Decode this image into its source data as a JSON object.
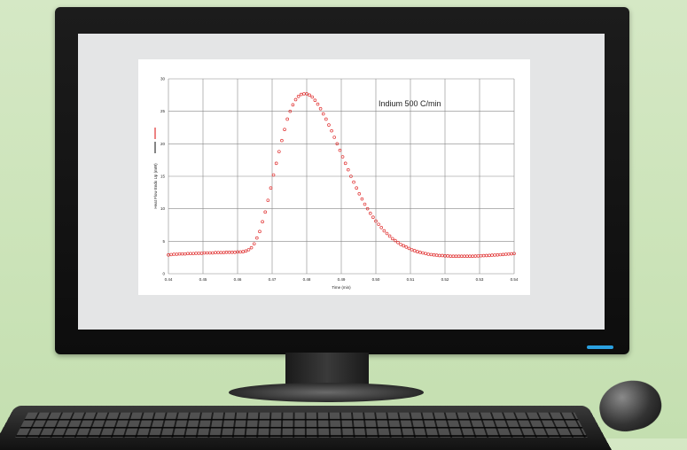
{
  "chart_data": {
    "type": "scatter",
    "annotation": "Indium 500 C/min",
    "xlabel": "Time (min)",
    "ylabel": "Heat Flow Endo Up (mW)",
    "xlim": [
      0.44,
      0.54
    ],
    "ylim": [
      0,
      30
    ],
    "xticks": [
      "0.44",
      "0.45",
      "0.46",
      "0.47",
      "0.48",
      "0.49",
      "0.50",
      "0.51",
      "0.52",
      "0.53",
      "0.54"
    ],
    "yticks": [
      "0",
      "5",
      "10",
      "15",
      "20",
      "25",
      "30"
    ],
    "grid": true,
    "marker_color": "#e03030",
    "series": [
      {
        "points": [
          [
            0.44,
            2.9
          ],
          [
            0.4408,
            2.95
          ],
          [
            0.4416,
            3.0
          ],
          [
            0.4424,
            3.0
          ],
          [
            0.4432,
            3.05
          ],
          [
            0.444,
            3.05
          ],
          [
            0.4448,
            3.05
          ],
          [
            0.4456,
            3.1
          ],
          [
            0.4464,
            3.1
          ],
          [
            0.4472,
            3.1
          ],
          [
            0.448,
            3.15
          ],
          [
            0.4488,
            3.15
          ],
          [
            0.4496,
            3.15
          ],
          [
            0.4504,
            3.2
          ],
          [
            0.4512,
            3.2
          ],
          [
            0.452,
            3.2
          ],
          [
            0.4528,
            3.2
          ],
          [
            0.4536,
            3.25
          ],
          [
            0.4544,
            3.25
          ],
          [
            0.4552,
            3.25
          ],
          [
            0.456,
            3.25
          ],
          [
            0.4568,
            3.3
          ],
          [
            0.4576,
            3.3
          ],
          [
            0.4584,
            3.3
          ],
          [
            0.4592,
            3.3
          ],
          [
            0.46,
            3.35
          ],
          [
            0.4608,
            3.35
          ],
          [
            0.4616,
            3.4
          ],
          [
            0.4624,
            3.5
          ],
          [
            0.4632,
            3.7
          ],
          [
            0.464,
            4.0
          ],
          [
            0.4648,
            4.6
          ],
          [
            0.4656,
            5.5
          ],
          [
            0.4664,
            6.5
          ],
          [
            0.4672,
            8.0
          ],
          [
            0.468,
            9.5
          ],
          [
            0.4688,
            11.3
          ],
          [
            0.4696,
            13.2
          ],
          [
            0.4704,
            15.2
          ],
          [
            0.4712,
            17.0
          ],
          [
            0.472,
            18.8
          ],
          [
            0.4728,
            20.5
          ],
          [
            0.4736,
            22.2
          ],
          [
            0.4744,
            23.8
          ],
          [
            0.4752,
            25.0
          ],
          [
            0.476,
            26.0
          ],
          [
            0.4768,
            26.8
          ],
          [
            0.4776,
            27.3
          ],
          [
            0.4784,
            27.6
          ],
          [
            0.4792,
            27.7
          ],
          [
            0.48,
            27.7
          ],
          [
            0.4808,
            27.5
          ],
          [
            0.4816,
            27.2
          ],
          [
            0.4824,
            26.7
          ],
          [
            0.4832,
            26.1
          ],
          [
            0.484,
            25.4
          ],
          [
            0.4848,
            24.6
          ],
          [
            0.4856,
            23.8
          ],
          [
            0.4864,
            22.9
          ],
          [
            0.4872,
            22.0
          ],
          [
            0.488,
            21.0
          ],
          [
            0.4888,
            20.0
          ],
          [
            0.4896,
            19.0
          ],
          [
            0.4904,
            18.0
          ],
          [
            0.4912,
            17.0
          ],
          [
            0.492,
            16.0
          ],
          [
            0.4928,
            15.0
          ],
          [
            0.4936,
            14.1
          ],
          [
            0.4944,
            13.2
          ],
          [
            0.4952,
            12.3
          ],
          [
            0.496,
            11.5
          ],
          [
            0.4968,
            10.7
          ],
          [
            0.4976,
            10.0
          ],
          [
            0.4984,
            9.3
          ],
          [
            0.4992,
            8.7
          ],
          [
            0.5,
            8.1
          ],
          [
            0.5008,
            7.6
          ],
          [
            0.5016,
            7.1
          ],
          [
            0.5024,
            6.6
          ],
          [
            0.5032,
            6.2
          ],
          [
            0.504,
            5.8
          ],
          [
            0.5048,
            5.4
          ],
          [
            0.5056,
            5.1
          ],
          [
            0.5064,
            4.8
          ],
          [
            0.5072,
            4.5
          ],
          [
            0.508,
            4.3
          ],
          [
            0.5088,
            4.1
          ],
          [
            0.5096,
            3.9
          ],
          [
            0.5104,
            3.7
          ],
          [
            0.5112,
            3.55
          ],
          [
            0.512,
            3.4
          ],
          [
            0.5128,
            3.3
          ],
          [
            0.5136,
            3.2
          ],
          [
            0.5144,
            3.1
          ],
          [
            0.5152,
            3.0
          ],
          [
            0.516,
            2.95
          ],
          [
            0.5168,
            2.9
          ],
          [
            0.5176,
            2.85
          ],
          [
            0.5184,
            2.8
          ],
          [
            0.5192,
            2.8
          ],
          [
            0.52,
            2.75
          ],
          [
            0.5208,
            2.75
          ],
          [
            0.5216,
            2.7
          ],
          [
            0.5224,
            2.7
          ],
          [
            0.5232,
            2.7
          ],
          [
            0.524,
            2.7
          ],
          [
            0.5248,
            2.7
          ],
          [
            0.5256,
            2.7
          ],
          [
            0.5264,
            2.7
          ],
          [
            0.5272,
            2.7
          ],
          [
            0.528,
            2.7
          ],
          [
            0.5288,
            2.72
          ],
          [
            0.5296,
            2.74
          ],
          [
            0.5304,
            2.76
          ],
          [
            0.5312,
            2.78
          ],
          [
            0.532,
            2.8
          ],
          [
            0.5328,
            2.82
          ],
          [
            0.5336,
            2.85
          ],
          [
            0.5344,
            2.88
          ],
          [
            0.5352,
            2.9
          ],
          [
            0.536,
            2.93
          ],
          [
            0.5368,
            2.96
          ],
          [
            0.5376,
            3.0
          ],
          [
            0.5384,
            3.03
          ],
          [
            0.5392,
            3.06
          ],
          [
            0.54,
            3.1
          ]
        ]
      }
    ]
  }
}
